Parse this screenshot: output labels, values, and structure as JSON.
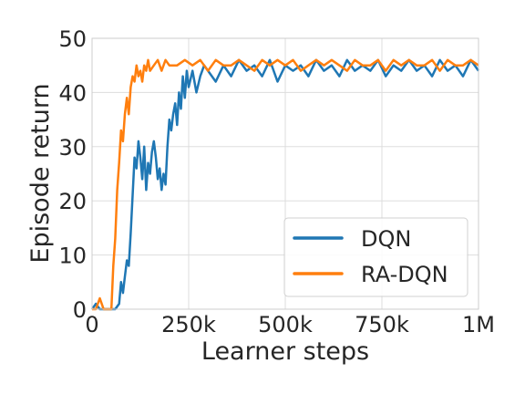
{
  "chart_data": {
    "type": "line",
    "title": "",
    "xlabel": "Learner steps",
    "ylabel": "Episode return",
    "xlim": [
      0,
      1000000
    ],
    "ylim": [
      0,
      50
    ],
    "grid": true,
    "legend_position": "bottom-right",
    "x_ticks": [
      0,
      250000,
      500000,
      750000,
      1000000
    ],
    "x_tick_labels": [
      "0",
      "250k",
      "500k",
      "750k",
      "1M"
    ],
    "y_ticks": [
      0,
      10,
      20,
      30,
      40,
      50
    ],
    "y_tick_labels": [
      "0",
      "10",
      "20",
      "30",
      "40",
      "50"
    ],
    "series": [
      {
        "name": "DQN",
        "color": "#1f77b4",
        "x": [
          0,
          10000,
          20000,
          30000,
          40000,
          50000,
          60000,
          70000,
          75000,
          80000,
          85000,
          90000,
          95000,
          100000,
          105000,
          110000,
          115000,
          120000,
          125000,
          130000,
          135000,
          140000,
          145000,
          150000,
          155000,
          160000,
          165000,
          170000,
          175000,
          180000,
          185000,
          190000,
          195000,
          200000,
          205000,
          210000,
          215000,
          220000,
          225000,
          230000,
          235000,
          240000,
          245000,
          250000,
          260000,
          270000,
          280000,
          290000,
          300000,
          320000,
          340000,
          360000,
          380000,
          400000,
          420000,
          440000,
          460000,
          480000,
          500000,
          520000,
          540000,
          560000,
          580000,
          600000,
          620000,
          640000,
          660000,
          680000,
          700000,
          720000,
          740000,
          760000,
          780000,
          800000,
          820000,
          840000,
          860000,
          880000,
          900000,
          920000,
          940000,
          960000,
          980000,
          1000000
        ],
        "y": [
          0,
          1,
          0,
          0,
          0,
          0,
          0,
          1,
          5,
          3,
          6,
          9,
          8,
          14,
          21,
          28,
          26,
          31,
          28,
          24,
          30,
          22,
          27,
          25,
          29,
          31,
          28,
          24,
          26,
          22,
          25,
          23,
          30,
          35,
          33,
          36,
          38,
          34,
          40,
          37,
          43,
          39,
          44,
          41,
          44,
          40,
          43,
          45,
          44,
          42,
          45,
          43,
          46,
          44,
          45,
          43,
          46,
          42,
          45,
          44,
          45,
          43,
          46,
          44,
          45,
          43,
          46,
          44,
          45,
          44,
          46,
          43,
          45,
          44,
          46,
          44,
          45,
          43,
          46,
          44,
          45,
          43,
          46,
          44
        ]
      },
      {
        "name": "RA-DQN",
        "color": "#ff7f0e",
        "x": [
          0,
          10000,
          20000,
          30000,
          40000,
          50000,
          55000,
          60000,
          65000,
          70000,
          75000,
          80000,
          85000,
          90000,
          95000,
          100000,
          105000,
          110000,
          115000,
          120000,
          125000,
          130000,
          135000,
          140000,
          145000,
          150000,
          160000,
          170000,
          180000,
          190000,
          200000,
          220000,
          240000,
          260000,
          280000,
          300000,
          320000,
          340000,
          360000,
          380000,
          400000,
          420000,
          440000,
          460000,
          480000,
          500000,
          520000,
          540000,
          560000,
          580000,
          600000,
          620000,
          640000,
          660000,
          680000,
          700000,
          720000,
          740000,
          760000,
          780000,
          800000,
          820000,
          840000,
          860000,
          880000,
          900000,
          920000,
          940000,
          960000,
          980000,
          1000000
        ],
        "y": [
          0,
          0,
          2,
          0,
          0,
          0,
          8,
          13,
          22,
          27,
          33,
          31,
          36,
          39,
          36,
          41,
          43,
          42,
          45,
          43,
          44,
          42,
          45,
          44,
          46,
          44,
          45,
          46,
          44,
          46,
          45,
          45,
          46,
          45,
          46,
          44,
          46,
          45,
          45,
          46,
          45,
          44,
          46,
          45,
          46,
          45,
          46,
          44,
          45,
          46,
          45,
          46,
          45,
          44,
          46,
          45,
          45,
          46,
          44,
          46,
          45,
          46,
          45,
          45,
          46,
          44,
          46,
          45,
          45,
          46,
          45
        ]
      }
    ]
  }
}
